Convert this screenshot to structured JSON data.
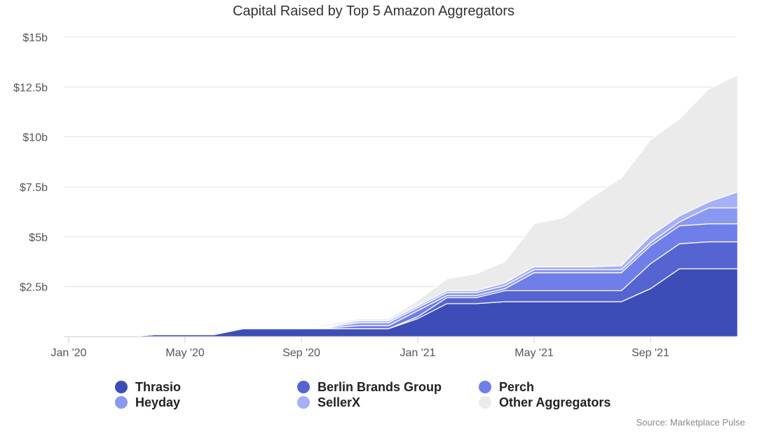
{
  "chart_data": {
    "type": "area",
    "stacked": true,
    "title": "Capital Raised by Top 5 Amazon Aggregators",
    "source": "Source: Marketplace Pulse",
    "xlabel": "",
    "ylabel": "",
    "ylim": [
      0,
      15
    ],
    "y_ticks": [
      {
        "value": 2.5,
        "label": "$2.5b"
      },
      {
        "value": 5,
        "label": "$5b"
      },
      {
        "value": 7.5,
        "label": "$7.5b"
      },
      {
        "value": 10,
        "label": "$10b"
      },
      {
        "value": 12.5,
        "label": "$12.5b"
      },
      {
        "value": 15,
        "label": "$15b"
      }
    ],
    "x_ticks": [
      {
        "month": 0,
        "label": "Jan '20"
      },
      {
        "month": 4,
        "label": "May '20"
      },
      {
        "month": 8,
        "label": "Sep '20"
      },
      {
        "month": 12,
        "label": "Jan '21"
      },
      {
        "month": 16,
        "label": "May '21"
      },
      {
        "month": 20,
        "label": "Sep '21"
      }
    ],
    "x": [
      0,
      1,
      2,
      3,
      4,
      5,
      6,
      7,
      8,
      9,
      10,
      11,
      12,
      13,
      14,
      15,
      16,
      17,
      18,
      19,
      20,
      21,
      22,
      23
    ],
    "series": [
      {
        "name": "Thrasio",
        "color": "#3d4db7",
        "values": [
          0,
          0,
          0,
          0.1,
          0.1,
          0.1,
          0.4,
          0.4,
          0.4,
          0.4,
          0.4,
          0.4,
          0.9,
          1.65,
          1.65,
          1.75,
          1.75,
          1.75,
          1.75,
          1.75,
          2.4,
          3.4,
          3.4,
          3.4
        ]
      },
      {
        "name": "Berlin Brands Group",
        "color": "#5664d2",
        "values": [
          0,
          0,
          0,
          0,
          0,
          0,
          0,
          0,
          0,
          0,
          0,
          0,
          0.1,
          0.3,
          0.3,
          0.55,
          0.55,
          0.55,
          0.55,
          0.55,
          1.25,
          1.25,
          1.35,
          1.35
        ]
      },
      {
        "name": "Perch",
        "color": "#6f7ee8",
        "values": [
          0,
          0,
          0,
          0,
          0,
          0,
          0,
          0,
          0,
          0.05,
          0.15,
          0.15,
          0.3,
          0.1,
          0.1,
          0.1,
          0.9,
          0.9,
          0.9,
          0.9,
          0.9,
          0.9,
          0.9,
          0.9
        ]
      },
      {
        "name": "Heyday",
        "color": "#8a98f2",
        "values": [
          0,
          0,
          0,
          0,
          0,
          0,
          0,
          0,
          0,
          0.05,
          0.15,
          0.15,
          0.15,
          0.15,
          0.15,
          0.15,
          0.15,
          0.15,
          0.15,
          0.15,
          0.15,
          0.2,
          0.8,
          0.8
        ]
      },
      {
        "name": "SellerX",
        "color": "#a5b0f7",
        "values": [
          0,
          0,
          0,
          0,
          0,
          0,
          0,
          0,
          0,
          0.05,
          0.1,
          0.1,
          0.1,
          0.1,
          0.1,
          0.15,
          0.15,
          0.15,
          0.15,
          0.2,
          0.35,
          0.3,
          0.3,
          0.8
        ]
      },
      {
        "name": "Other Aggregators",
        "color": "#ebebeb",
        "values": [
          0,
          0,
          0,
          0,
          0,
          0,
          0,
          0,
          0,
          0.1,
          0.1,
          0.1,
          0.25,
          0.6,
          0.85,
          1.05,
          2.15,
          2.45,
          3.5,
          4.4,
          4.8,
          4.85,
          5.65,
          5.85
        ]
      }
    ],
    "legend_position": "bottom"
  }
}
